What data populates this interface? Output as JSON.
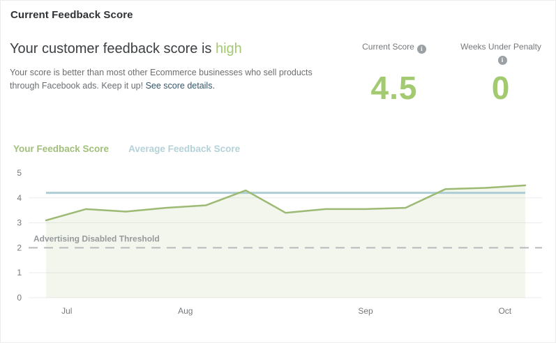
{
  "page": {
    "title": "Current Feedback Score"
  },
  "colors": {
    "accent_green": "#a3ca70",
    "link_color": "#33566b",
    "label_gray": "#75787b"
  },
  "header": {
    "headline_prefix": "Your customer feedback score is ",
    "headline_status": "high",
    "description": "Your score is better than most other Ecommerce businesses who sell products through Facebook ads. Keep it up! ",
    "link_text": "See score details.",
    "stats": [
      {
        "label": "Current Score",
        "value": "4.5"
      },
      {
        "label": "Weeks Under Penalty",
        "value": "0"
      }
    ]
  },
  "legend": [
    {
      "label": "Your Feedback Score",
      "color": "#a1bf7a"
    },
    {
      "label": "Average Feedback Score",
      "color": "#b4d2d8"
    }
  ],
  "chart_data": {
    "type": "line",
    "title": "Feedback score over time",
    "x_unit": "week",
    "x": [
      0,
      1,
      2,
      3,
      4,
      5,
      6,
      7,
      8,
      9,
      10,
      11,
      12
    ],
    "series": [
      {
        "name": "Your Feedback Score",
        "color": "#9cba74",
        "fill": "rgba(156,186,116,0.13)",
        "values": [
          3.1,
          3.55,
          3.45,
          3.6,
          3.7,
          4.3,
          3.4,
          3.55,
          3.55,
          3.6,
          4.35,
          4.4,
          4.5
        ]
      },
      {
        "name": "Average Feedback Score",
        "color": "#aecdd5",
        "constant_value": 4.2
      }
    ],
    "threshold": {
      "label": "Advertising Disabled Threshold",
      "value": 2,
      "line_color": "#b6babd",
      "label_color": "#95999c"
    },
    "yticks": [
      0,
      1,
      2,
      3,
      4,
      5
    ],
    "gridline_ticks": [
      0,
      1,
      3,
      4
    ],
    "ylim": [
      0,
      5
    ],
    "x_axis_months": [
      {
        "label": "Jul",
        "x": 0.52
      },
      {
        "label": "Aug",
        "x": 3.49
      },
      {
        "label": "Sep",
        "x": 8.0
      },
      {
        "label": "Oct",
        "x": 11.49
      }
    ],
    "grid": true,
    "legend_position": "top-left",
    "axis_text_color": "#75787b",
    "grid_color": "#ebebeb"
  }
}
